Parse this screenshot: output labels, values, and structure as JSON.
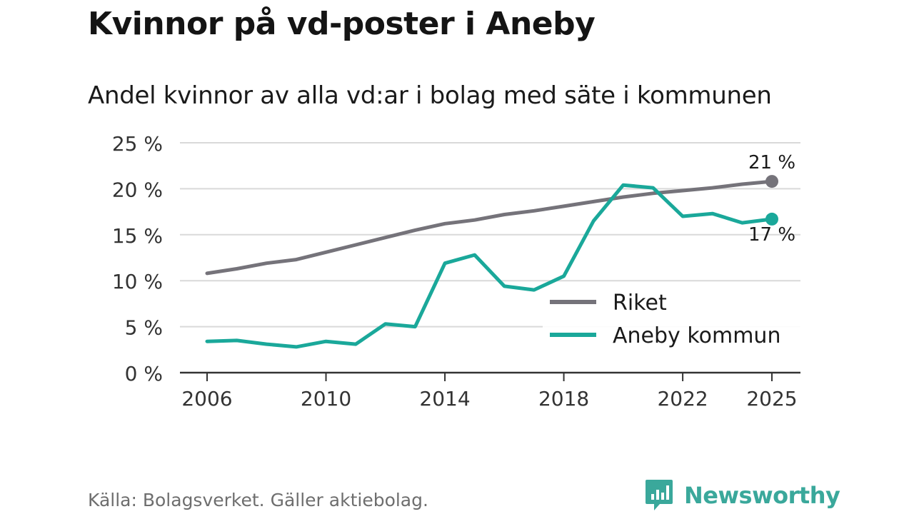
{
  "header": {
    "title": "Kvinnor på vd-poster i Aneby",
    "subtitle": "Andel kvinnor av alla vd:ar i bolag med säte i kommunen"
  },
  "footer": {
    "source": "Källa: Bolagsverket. Gäller aktiebolag.",
    "brand": "Newsworthy"
  },
  "colors": {
    "riket": "#75737a",
    "aneby": "#1aa89a",
    "grid": "#d9d9d9",
    "axis": "#333333",
    "brand": "#3aa89b"
  },
  "chart_data": {
    "type": "line",
    "title": "Kvinnor på vd-poster i Aneby",
    "subtitle": "Andel kvinnor av alla vd:ar i bolag med säte i kommunen",
    "xlabel": "",
    "ylabel": "",
    "x": [
      2006,
      2007,
      2008,
      2009,
      2010,
      2011,
      2012,
      2013,
      2014,
      2015,
      2016,
      2017,
      2018,
      2019,
      2020,
      2021,
      2022,
      2023,
      2024,
      2025
    ],
    "xlim": [
      2006,
      2025
    ],
    "ylim": [
      0,
      25
    ],
    "x_ticks": [
      2006,
      2010,
      2014,
      2018,
      2022,
      2025
    ],
    "y_ticks": [
      0,
      5,
      10,
      15,
      20,
      25
    ],
    "y_tick_labels": [
      "0 %",
      "5 %",
      "10 %",
      "15 %",
      "20 %",
      "25 %"
    ],
    "grid": true,
    "legend_position": "bottom-right",
    "series": [
      {
        "name": "Riket",
        "color": "#75737a",
        "values": [
          10.8,
          11.3,
          11.9,
          12.3,
          13.1,
          13.9,
          14.7,
          15.5,
          16.2,
          16.6,
          17.2,
          17.6,
          18.1,
          18.6,
          19.1,
          19.5,
          19.8,
          20.1,
          20.5,
          20.8
        ],
        "end_label": "21 %"
      },
      {
        "name": "Aneby kommun",
        "color": "#1aa89a",
        "values": [
          3.4,
          3.5,
          3.1,
          2.8,
          3.4,
          3.1,
          5.3,
          5.0,
          11.9,
          12.8,
          9.4,
          9.0,
          10.5,
          16.5,
          20.4,
          20.1,
          17.0,
          17.3,
          16.3,
          16.7
        ],
        "end_label": "17 %"
      }
    ]
  }
}
